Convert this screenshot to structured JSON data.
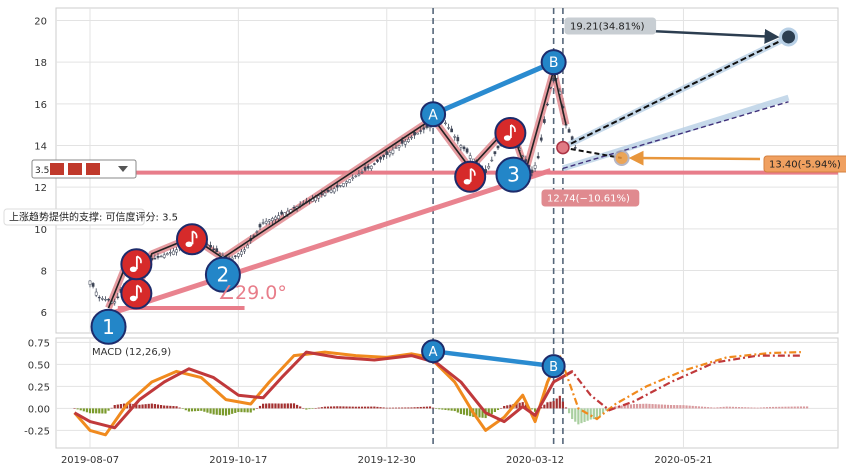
{
  "chart_data": [
    {
      "type": "candlestick",
      "y_ticks": [
        6,
        8,
        10,
        12,
        14,
        16,
        18,
        20
      ],
      "ylim": [
        5,
        20.6
      ],
      "x_ticks": [
        "2019-08-07",
        "2019-10-17",
        "2019-12-30",
        "2020-03-12",
        "2020-05-21"
      ],
      "x_tick_positions": [
        0,
        48,
        96,
        144,
        192
      ],
      "xlim": [
        -11,
        242
      ],
      "price_path": [
        [
          0,
          7.5
        ],
        [
          3,
          6.7
        ],
        [
          8,
          6.5
        ],
        [
          13,
          7.6
        ],
        [
          20,
          8.5
        ],
        [
          28,
          9.0
        ],
        [
          34,
          9.7
        ],
        [
          40,
          9.0
        ],
        [
          45,
          8.5
        ],
        [
          50,
          9.0
        ],
        [
          56,
          10.3
        ],
        [
          62,
          10.7
        ],
        [
          70,
          11.3
        ],
        [
          80,
          12.0
        ],
        [
          90,
          12.9
        ],
        [
          100,
          14.0
        ],
        [
          106,
          14.6
        ],
        [
          114,
          15.3
        ],
        [
          120,
          14.0
        ],
        [
          128,
          12.7
        ],
        [
          131,
          13.6
        ],
        [
          136,
          15.0
        ],
        [
          140,
          13.5
        ],
        [
          143,
          12.7
        ],
        [
          145,
          13.4
        ],
        [
          149,
          16.8
        ],
        [
          151,
          17.4
        ],
        [
          154,
          15.0
        ],
        [
          157,
          13.9
        ]
      ],
      "waves": [
        {
          "label": "1",
          "x": 6,
          "y": 5.3
        },
        {
          "label": "2",
          "x": 43,
          "y": 7.8
        },
        {
          "label": "A",
          "x": 111,
          "y": 15.5
        },
        {
          "label": "3",
          "x": 137,
          "y": 12.6
        },
        {
          "label": "B",
          "x": 150,
          "y": 18.0
        }
      ],
      "notes": [
        {
          "x": 15,
          "y": 6.9
        },
        {
          "x": 15,
          "y": 8.3
        },
        {
          "x": 33,
          "y": 9.5
        },
        {
          "x": 123,
          "y": 12.5
        },
        {
          "x": 136,
          "y": 14.6
        }
      ],
      "support_level": 12.7,
      "angle_label": "∠29.0°",
      "target_up": {
        "x": 226,
        "y": 19.21,
        "label": "19.21(34.81%)"
      },
      "target_mid": {
        "x": 172,
        "y": 13.4,
        "label": "13.40(-5.94%)"
      },
      "target_low": {
        "y": 12.74,
        "label": "12.74(−10.61%)"
      },
      "support_note": "上涨趋势提供的支撑: 可信度评分: 3.5",
      "badge_label": "3.5"
    },
    {
      "type": "macd",
      "title": "MACD (12,26,9)",
      "y_ticks": [
        0.75,
        0.5,
        0.25,
        0.0,
        -0.25
      ],
      "ylim": [
        -0.45,
        0.8
      ],
      "macd_line": [
        [
          -5,
          -0.05
        ],
        [
          0,
          -0.25
        ],
        [
          5,
          -0.3
        ],
        [
          12,
          0.05
        ],
        [
          20,
          0.3
        ],
        [
          28,
          0.42
        ],
        [
          36,
          0.35
        ],
        [
          44,
          0.1
        ],
        [
          52,
          0.05
        ],
        [
          58,
          0.3
        ],
        [
          66,
          0.6
        ],
        [
          76,
          0.64
        ],
        [
          86,
          0.6
        ],
        [
          96,
          0.58
        ],
        [
          104,
          0.62
        ],
        [
          110,
          0.58
        ],
        [
          118,
          0.3
        ],
        [
          124,
          -0.05
        ],
        [
          128,
          -0.25
        ],
        [
          134,
          -0.1
        ],
        [
          140,
          0.15
        ],
        [
          144,
          -0.15
        ],
        [
          148,
          0.3
        ],
        [
          152,
          0.6
        ],
        [
          158,
          0.0
        ],
        [
          164,
          -0.12
        ],
        [
          170,
          0.05
        ],
        [
          180,
          0.25
        ],
        [
          192,
          0.43
        ],
        [
          206,
          0.58
        ],
        [
          220,
          0.63
        ],
        [
          230,
          0.64
        ]
      ],
      "signal_line": [
        [
          -5,
          -0.05
        ],
        [
          0,
          -0.15
        ],
        [
          8,
          -0.22
        ],
        [
          16,
          0.1
        ],
        [
          24,
          0.3
        ],
        [
          32,
          0.45
        ],
        [
          40,
          0.35
        ],
        [
          48,
          0.15
        ],
        [
          56,
          0.12
        ],
        [
          62,
          0.35
        ],
        [
          70,
          0.64
        ],
        [
          80,
          0.58
        ],
        [
          92,
          0.55
        ],
        [
          104,
          0.6
        ],
        [
          112,
          0.52
        ],
        [
          120,
          0.3
        ],
        [
          128,
          -0.05
        ],
        [
          134,
          -0.15
        ],
        [
          140,
          0.02
        ],
        [
          144,
          -0.08
        ],
        [
          150,
          0.3
        ],
        [
          156,
          0.42
        ],
        [
          162,
          0.15
        ],
        [
          168,
          -0.02
        ],
        [
          176,
          0.08
        ],
        [
          188,
          0.3
        ],
        [
          202,
          0.52
        ],
        [
          216,
          0.6
        ],
        [
          230,
          0.6
        ]
      ],
      "points": [
        {
          "label": "A",
          "x": 111,
          "y": 0.65
        },
        {
          "label": "B",
          "x": 150,
          "y": 0.48
        }
      ]
    }
  ]
}
